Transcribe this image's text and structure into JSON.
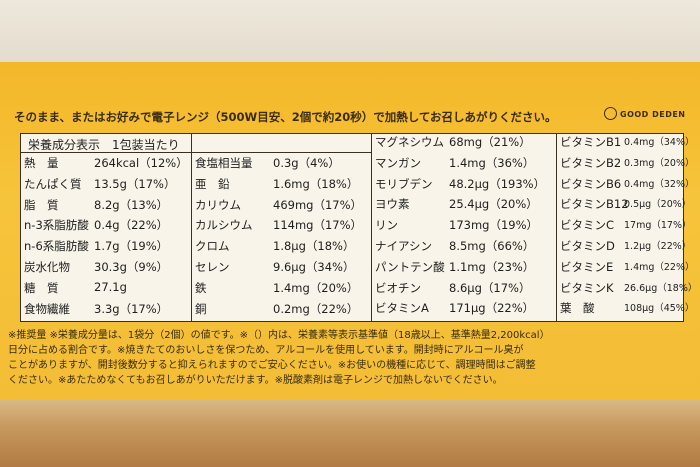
{
  "instruction": "そのまま、またはお好みで電子レンジ（500W目安、2個で約20秒）で加熱してお召しあがりください。",
  "logo": "GOOD DEDEN",
  "table": {
    "header": "栄養成分表示　1包装当たり",
    "columns": [
      [
        [
          "熱　量",
          "264kcal（12%）"
        ],
        [
          "たんぱく質",
          "13.5g（17%）"
        ],
        [
          "脂　質",
          "8.2g（13%）"
        ],
        [
          "n-3系脂肪酸",
          "0.4g（22%）"
        ],
        [
          "n-6系脂肪酸",
          "1.7g（19%）"
        ],
        [
          "炭水化物",
          "30.3g（9%）"
        ],
        [
          "糖　質",
          "27.1g"
        ],
        [
          "食物繊維",
          "3.3g（17%）"
        ]
      ],
      [
        [
          "食塩相当量",
          "0.3g（4%）"
        ],
        [
          "亜　鉛",
          "1.6mg（18%）"
        ],
        [
          "カリウム",
          "469mg（17%）"
        ],
        [
          "カルシウム",
          "114mg（17%）"
        ],
        [
          "クロム",
          "1.8μg（18%）"
        ],
        [
          "セレン",
          "9.6μg（34%）"
        ],
        [
          "鉄",
          "1.4mg（20%）"
        ],
        [
          "銅",
          "0.2mg（22%）"
        ]
      ],
      [
        [
          "マグネシウム",
          "68mg（21%）"
        ],
        [
          "マンガン",
          "1.4mg（36%）"
        ],
        [
          "モリブデン",
          "48.2μg（193%）"
        ],
        [
          "ヨウ素",
          "25.4μg（20%）"
        ],
        [
          "リン",
          "173mg（19%）"
        ],
        [
          "ナイアシン",
          "8.5mg（66%）"
        ],
        [
          "パントテン酸",
          "1.1mg（23%）"
        ],
        [
          "ビオチン",
          "8.6μg（17%）"
        ],
        [
          "ビタミンA",
          "171μg（22%）"
        ]
      ],
      [
        [
          "ビタミンB1",
          "0.4mg（34%）"
        ],
        [
          "ビタミンB2",
          "0.3mg（20%）"
        ],
        [
          "ビタミンB6",
          "0.4mg（32%）"
        ],
        [
          "ビタミンB12",
          "0.5μg（20%）"
        ],
        [
          "ビタミンC",
          "17mg（17%）"
        ],
        [
          "ビタミンD",
          "1.2μg（22%）"
        ],
        [
          "ビタミンE",
          "1.4mg（22%）"
        ],
        [
          "ビタミンK",
          "26.6μg（18%）"
        ],
        [
          "葉　酸",
          "108μg（45%）"
        ]
      ]
    ]
  },
  "notes": [
    "※推奨量 ※栄養成分量は、1袋分（2個）の値です。※（）内は、栄養素等表示基準値（18歳以上、基準熱量2,200kcal）",
    "日分に占める割合です。※焼きたてのおいしさを保つため、アルコールを使用しています。開封時にアルコール臭が",
    "ことがありますが、開封後数分すると抑えられますのでご安心ください。※お使いの機種に応じて、調理時間はご調整",
    "ください。※あたためなくてもお召しあがりいただけます。※脱酸素剤は電子レンジで加熱しないでください。"
  ]
}
